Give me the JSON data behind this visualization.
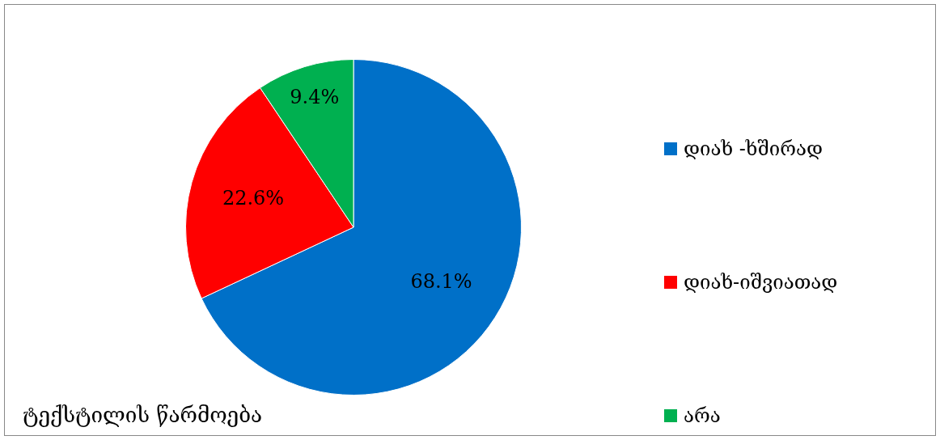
{
  "chart_data": {
    "type": "pie",
    "title": "ტექსტილის წარმოება",
    "categories": [
      "დიახ -ხშირად",
      "დიახ-იშვიათად",
      "არა"
    ],
    "values": [
      68.1,
      22.6,
      9.4
    ],
    "value_labels": [
      "68.1%",
      "22.6%",
      "9.4%"
    ],
    "colors": [
      "#0070c8",
      "#ff0000",
      "#00b050"
    ],
    "legend": "right"
  }
}
